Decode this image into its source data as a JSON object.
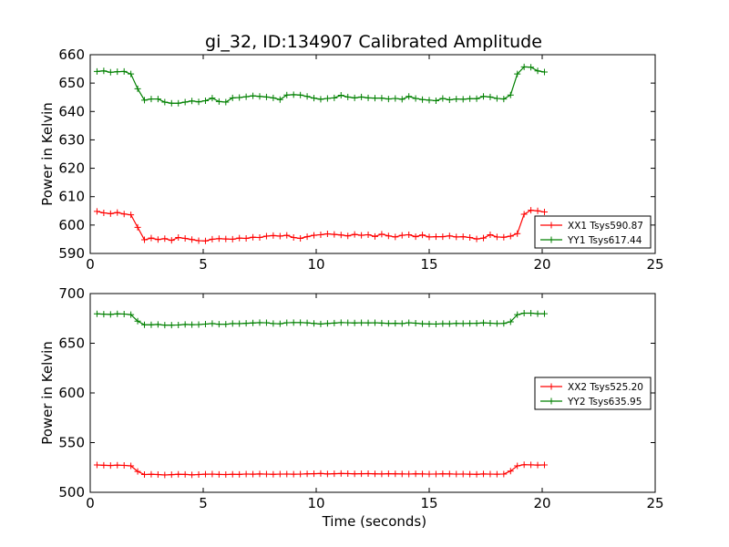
{
  "title": "gi_32, ID:134907 Calibrated Amplitude",
  "chart_data": [
    {
      "type": "line",
      "ylabel": "Power in Kelvin",
      "xlabel": "",
      "xlim": [
        0,
        25
      ],
      "ylim": [
        590,
        660
      ],
      "xticks": [
        0,
        5,
        10,
        15,
        20,
        25
      ],
      "yticks": [
        590,
        600,
        610,
        620,
        630,
        640,
        650,
        660
      ],
      "legend": "right",
      "x": [
        0.3,
        0.6,
        0.9,
        1.2,
        1.5,
        1.8,
        2.1,
        2.4,
        2.7,
        3.0,
        3.3,
        3.6,
        3.9,
        4.2,
        4.5,
        4.8,
        5.1,
        5.4,
        5.7,
        6.0,
        6.3,
        6.6,
        6.9,
        7.2,
        7.5,
        7.8,
        8.1,
        8.4,
        8.7,
        9.0,
        9.3,
        9.6,
        9.9,
        10.2,
        10.5,
        10.8,
        11.1,
        11.4,
        11.7,
        12.0,
        12.3,
        12.6,
        12.9,
        13.2,
        13.5,
        13.8,
        14.1,
        14.4,
        14.7,
        15.0,
        15.3,
        15.6,
        15.9,
        16.2,
        16.5,
        16.8,
        17.1,
        17.4,
        17.7,
        18.0,
        18.3,
        18.6,
        18.9,
        19.2,
        19.5,
        19.8,
        20.1
      ],
      "series": [
        {
          "name": "XX1 Tsys590.87",
          "color": "#ff0000",
          "values": [
            604.8,
            604.3,
            604.0,
            604.4,
            603.9,
            603.6,
            599.2,
            594.8,
            595.4,
            594.9,
            595.2,
            594.6,
            595.6,
            595.3,
            594.9,
            594.5,
            594.4,
            595.0,
            595.2,
            595.1,
            595.0,
            595.4,
            595.3,
            595.7,
            595.6,
            596.1,
            596.3,
            596.1,
            596.4,
            595.6,
            595.3,
            595.9,
            596.4,
            596.6,
            596.9,
            596.7,
            596.5,
            596.2,
            596.7,
            596.4,
            596.6,
            596.0,
            596.8,
            596.2,
            595.8,
            596.4,
            596.6,
            595.9,
            596.5,
            595.8,
            595.9,
            595.9,
            596.2,
            595.8,
            595.9,
            595.6,
            595.1,
            595.4,
            596.6,
            595.8,
            595.7,
            596.1,
            597.0,
            603.8,
            605.2,
            605.0,
            604.6
          ]
        },
        {
          "name": "YY1 Tsys617.44",
          "color": "#008000",
          "values": [
            654.1,
            654.3,
            653.8,
            654.0,
            654.1,
            653.2,
            648.0,
            644.0,
            644.4,
            644.4,
            643.3,
            642.9,
            642.9,
            643.3,
            643.7,
            643.4,
            643.8,
            644.7,
            643.5,
            643.3,
            644.8,
            644.9,
            645.2,
            645.5,
            645.3,
            645.1,
            644.8,
            644.2,
            645.8,
            645.9,
            645.8,
            645.3,
            644.7,
            644.3,
            644.6,
            644.8,
            645.7,
            645.1,
            644.8,
            645.1,
            644.8,
            644.7,
            644.7,
            644.4,
            644.6,
            644.3,
            645.3,
            644.6,
            644.2,
            644.0,
            643.8,
            644.6,
            644.1,
            644.4,
            644.3,
            644.5,
            644.5,
            645.3,
            645.1,
            644.6,
            644.4,
            645.8,
            653.2,
            655.7,
            655.6,
            654.3,
            653.9
          ]
        }
      ]
    },
    {
      "type": "line",
      "ylabel": "Power in Kelvin",
      "xlabel": "Time (seconds)",
      "xlim": [
        0,
        25
      ],
      "ylim": [
        500,
        700
      ],
      "xticks": [
        0,
        5,
        10,
        15,
        20,
        25
      ],
      "yticks": [
        500,
        550,
        600,
        650,
        700
      ],
      "legend": "right",
      "x": [
        0.3,
        0.6,
        0.9,
        1.2,
        1.5,
        1.8,
        2.1,
        2.4,
        2.7,
        3.0,
        3.3,
        3.6,
        3.9,
        4.2,
        4.5,
        4.8,
        5.1,
        5.4,
        5.7,
        6.0,
        6.3,
        6.6,
        6.9,
        7.2,
        7.5,
        7.8,
        8.1,
        8.4,
        8.7,
        9.0,
        9.3,
        9.6,
        9.9,
        10.2,
        10.5,
        10.8,
        11.1,
        11.4,
        11.7,
        12.0,
        12.3,
        12.6,
        12.9,
        13.2,
        13.5,
        13.8,
        14.1,
        14.4,
        14.7,
        15.0,
        15.3,
        15.6,
        15.9,
        16.2,
        16.5,
        16.8,
        17.1,
        17.4,
        17.7,
        18.0,
        18.3,
        18.6,
        18.9,
        19.2,
        19.5,
        19.8,
        20.1
      ],
      "series": [
        {
          "name": "XX2 Tsys525.20",
          "color": "#ff0000",
          "values": [
            527.5,
            527.2,
            527.0,
            527.3,
            527.1,
            526.6,
            521.0,
            517.9,
            518.1,
            517.9,
            517.4,
            517.8,
            518.1,
            518.0,
            517.6,
            517.9,
            518.2,
            518.3,
            518.0,
            517.9,
            518.1,
            518.0,
            518.4,
            518.2,
            518.5,
            518.3,
            518.1,
            518.3,
            518.4,
            518.2,
            518.3,
            518.6,
            518.7,
            518.9,
            518.5,
            518.7,
            518.9,
            518.8,
            518.6,
            518.7,
            518.8,
            518.6,
            518.5,
            518.7,
            518.6,
            518.5,
            518.4,
            518.6,
            518.5,
            518.3,
            518.4,
            518.6,
            518.5,
            518.3,
            518.4,
            518.2,
            518.1,
            518.5,
            518.3,
            518.2,
            518.4,
            521.3,
            526.6,
            527.8,
            527.6,
            527.4,
            527.5
          ]
        },
        {
          "name": "YY2 Tsys635.95",
          "color": "#008000",
          "values": [
            679.6,
            679.3,
            679.0,
            679.6,
            679.4,
            678.8,
            672.2,
            668.6,
            668.6,
            668.9,
            668.2,
            668.2,
            668.4,
            668.9,
            668.7,
            668.8,
            669.3,
            669.8,
            669.1,
            669.1,
            669.8,
            669.7,
            670.1,
            670.4,
            670.7,
            670.6,
            669.8,
            669.6,
            670.6,
            670.8,
            670.8,
            670.5,
            669.9,
            669.4,
            669.9,
            670.3,
            670.8,
            670.6,
            670.4,
            670.6,
            670.5,
            670.6,
            670.3,
            669.9,
            670.1,
            669.8,
            670.6,
            670.2,
            669.6,
            669.4,
            669.3,
            669.7,
            669.6,
            670.0,
            669.8,
            670.0,
            670.1,
            670.5,
            670.2,
            669.8,
            670.0,
            671.6,
            678.8,
            680.3,
            680.3,
            679.7,
            679.7
          ]
        }
      ]
    }
  ]
}
